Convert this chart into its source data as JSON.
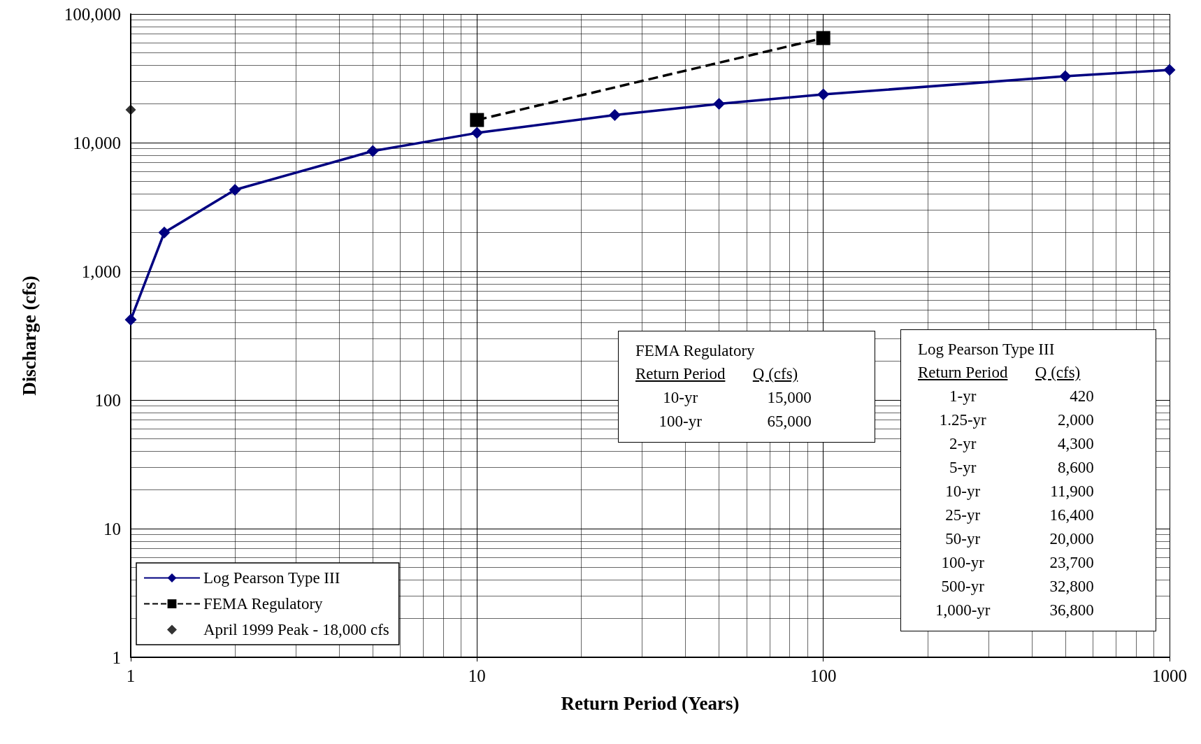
{
  "chart_data": {
    "type": "line",
    "xlabel": "Return Period (Years)",
    "ylabel": "Discharge (cfs)",
    "log": "xy",
    "grid": true,
    "legend": "bottom left",
    "xlim": [
      1,
      1000
    ],
    "xticks": [
      1,
      10,
      100,
      1000
    ],
    "ylim": [
      1,
      100000
    ],
    "yticks": [
      1,
      10,
      100,
      {
        "value": 1000,
        "label": "1,000"
      },
      {
        "value": 10000,
        "label": "10,000"
      },
      {
        "value": 100000,
        "label": "100,000"
      }
    ],
    "series": [
      {
        "name": "Log Pearson Type III",
        "color": "#000080",
        "marker": "diamond",
        "line_style": "solid",
        "x": [
          1,
          1.25,
          2,
          5,
          10,
          25,
          50,
          100,
          500,
          1000
        ],
        "values": [
          420,
          2000,
          4300,
          8600,
          11900,
          16400,
          20000,
          23700,
          32800,
          36800
        ]
      },
      {
        "name": "FEMA Regulatory",
        "color": "#000000",
        "marker": "square",
        "line_style": "dashed",
        "x": [
          10,
          100
        ],
        "values": [
          15000,
          65000
        ]
      },
      {
        "name": "April 1999 Peak - 18,000 cfs",
        "type": "scatter",
        "color": "#000000",
        "marker": "diamond",
        "x": [
          1
        ],
        "values": [
          18000
        ]
      }
    ],
    "annotations": [
      "Return Period",
      "Q (cfs)",
      "1-yr",
      "420",
      "1.25-yr",
      "2,000",
      "2-yr",
      "4,300",
      "5-yr",
      "8,600",
      "10-yr",
      "11,900",
      "25-yr",
      "16,400",
      "50-yr",
      "20,000",
      "100-yr",
      "23,700",
      "500-yr",
      "32,800",
      "1,000-yr",
      "36,800",
      "Return Period",
      "Q (cfs)",
      "10-yr",
      "15,000",
      "100-yr",
      "65,000"
    ]
  }
}
